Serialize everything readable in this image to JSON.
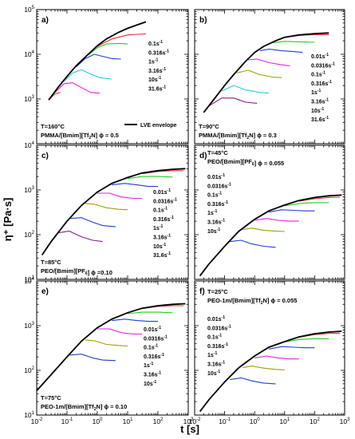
{
  "figure": {
    "ylabel": "η⁺ [Pa·s]",
    "xlabel": "t [s]"
  },
  "colors": {
    "lve": "#000000",
    "rates": [
      "#e53030",
      "#1ecf1e",
      "#1f3fd6",
      "#e81fe0",
      "#1ccfe0",
      "#a0a000",
      "#8b1a8b"
    ]
  },
  "chart_data": [
    {
      "type": "line",
      "panel": "a)",
      "x_scale": "log",
      "y_scale": "log",
      "xlim": [
        0.01,
        1000
      ],
      "ylim": [
        100,
        100000
      ],
      "y_ticks": [
        "10^3",
        "10^4",
        "10^5"
      ],
      "x_ticks": [],
      "condition_lines": [
        "T=160°C",
        "PMMA/[Bmim][Tf2N] ϕ = 0.5"
      ],
      "legend": [
        "0.1s-1",
        "0.316s-1",
        "1s-1",
        "3.16s-1",
        "10s-1",
        "31.6s-1"
      ],
      "lve_label": "LVE envelope",
      "lve": {
        "x": [
          0.025,
          0.05,
          0.1,
          0.2,
          0.5,
          1,
          2,
          5,
          10,
          20,
          40
        ],
        "y": [
          950,
          1800,
          3200,
          5500,
          10000,
          15500,
          22000,
          31000,
          38000,
          45000,
          53000
        ]
      },
      "series": [
        {
          "name": "0.1s-1",
          "color_index": 0,
          "x": [
            1,
            3,
            10,
            20,
            40
          ],
          "y": [
            15000,
            22000,
            27000,
            28000,
            28500
          ]
        },
        {
          "name": "0.316s-1",
          "color_index": 1,
          "x": [
            0.5,
            1,
            2,
            5,
            10
          ],
          "y": [
            9500,
            14000,
            17000,
            17500,
            17000
          ]
        },
        {
          "name": "1s-1",
          "color_index": 2,
          "x": [
            0.2,
            0.4,
            0.8,
            1.5,
            3,
            6
          ],
          "y": [
            5200,
            8000,
            10000,
            9000,
            8000,
            7800
          ]
        },
        {
          "name": "3.16s-1",
          "color_index": 4,
          "x": [
            0.08,
            0.15,
            0.3,
            0.6,
            1.2,
            3
          ],
          "y": [
            2500,
            3800,
            4500,
            3600,
            3000,
            2800
          ]
        },
        {
          "name": "10s-1",
          "color_index": 3,
          "x": [
            0.04,
            0.08,
            0.15,
            0.3,
            0.6,
            1.2
          ],
          "y": [
            1400,
            2200,
            2300,
            1800,
            1400,
            1350
          ]
        },
        {
          "name": "31.6s-1",
          "color_index": 0,
          "x": [
            0.025,
            0.04,
            0.06
          ],
          "y": [
            950,
            1300,
            1400
          ]
        }
      ]
    },
    {
      "type": "line",
      "panel": "b)",
      "x_scale": "log",
      "y_scale": "log",
      "xlim": [
        0.01,
        1000
      ],
      "ylim": [
        100,
        100000
      ],
      "y_ticks": [],
      "x_ticks": [],
      "condition_lines": [
        "T=90°C",
        "PMMA/[Bmim][Tf2N] ϕ = 0.3"
      ],
      "legend": [
        "0.01s-1",
        "0.0316s-1",
        "0.1s-1",
        "0.316s-1",
        "1s-1",
        "3.16s-1",
        "10s-1",
        "31.6s-1"
      ],
      "lve": {
        "x": [
          0.02,
          0.05,
          0.1,
          0.2,
          0.5,
          1,
          2,
          5,
          10,
          30,
          100,
          300
        ],
        "y": [
          500,
          1100,
          2000,
          3500,
          7000,
          11000,
          15000,
          20000,
          24000,
          27000,
          29000,
          30000
        ]
      },
      "series": [
        {
          "name": "0.01s-1",
          "color_index": 0,
          "x": [
            10,
            30,
            100,
            300
          ],
          "y": [
            24000,
            26500,
            27500,
            27500
          ]
        },
        {
          "name": "0.0316s-1",
          "color_index": 1,
          "x": [
            4,
            10,
            30,
            100
          ],
          "y": [
            18000,
            19500,
            19000,
            18500
          ]
        },
        {
          "name": "0.1s-1",
          "color_index": 2,
          "x": [
            1.5,
            3,
            8,
            20,
            40
          ],
          "y": [
            12000,
            13000,
            12000,
            11500,
            11000
          ]
        },
        {
          "name": "0.316s-1",
          "color_index": 3,
          "x": [
            0.6,
            1.2,
            3,
            8,
            15
          ],
          "y": [
            7500,
            7800,
            6500,
            5800,
            5500
          ]
        },
        {
          "name": "1s-1",
          "color_index": 5,
          "x": [
            0.25,
            0.6,
            1.5,
            4,
            8
          ],
          "y": [
            3800,
            4400,
            3500,
            3100,
            3000
          ]
        },
        {
          "name": "3.16s-1",
          "color_index": 4,
          "x": [
            0.08,
            0.2,
            0.5,
            1.5,
            3
          ],
          "y": [
            1500,
            2000,
            1600,
            1400,
            1350
          ]
        },
        {
          "name": "10s-1",
          "color_index": 6,
          "x": [
            0.03,
            0.08,
            0.2,
            0.5,
            1.2
          ],
          "y": [
            700,
            1050,
            1050,
            850,
            800
          ]
        }
      ]
    },
    {
      "type": "line",
      "panel": "c)",
      "x_scale": "log",
      "y_scale": "log",
      "xlim": [
        0.01,
        1000
      ],
      "ylim": [
        10,
        10000
      ],
      "y_ticks": [
        "10^1",
        "10^2",
        "10^3",
        "10^4"
      ],
      "x_ticks": [],
      "condition_lines": [
        "T=85°C",
        "PEO/[Bmim][PF6] ϕ =0.10"
      ],
      "legend": [
        "0.01s-1",
        "0.0316s-1",
        "0.1s-1",
        "0.316s-1",
        "1s-1",
        "3.16s-1",
        "10s-1",
        "31.6s-1"
      ],
      "lve": {
        "x": [
          0.015,
          0.03,
          0.1,
          0.3,
          1,
          3,
          10,
          30,
          100,
          300,
          800
        ],
        "y": [
          35,
          70,
          200,
          450,
          900,
          1400,
          1900,
          2400,
          2700,
          2900,
          3000
        ]
      },
      "series": [
        {
          "name": "0.01s-1",
          "color_index": 0,
          "x": [
            30,
            100,
            300,
            700
          ],
          "y": [
            2300,
            2600,
            2700,
            2700
          ]
        },
        {
          "name": "0.0316s-1",
          "color_index": 1,
          "x": [
            10,
            30,
            100,
            300
          ],
          "y": [
            1800,
            2000,
            2000,
            1950
          ]
        },
        {
          "name": "0.1s-1",
          "color_index": 2,
          "x": [
            3,
            8,
            20,
            50,
            100
          ],
          "y": [
            1300,
            1400,
            1300,
            1200,
            1200
          ]
        },
        {
          "name": "0.316s-1",
          "color_index": 3,
          "x": [
            1,
            2.5,
            6,
            15,
            30
          ],
          "y": [
            850,
            850,
            700,
            650,
            650
          ]
        },
        {
          "name": "1s-1",
          "color_index": 5,
          "x": [
            0.4,
            0.8,
            2,
            5,
            10
          ],
          "y": [
            500,
            480,
            400,
            370,
            360
          ]
        },
        {
          "name": "3.16s-1",
          "color_index": 2,
          "x": [
            0.12,
            0.3,
            0.7,
            1.5,
            4
          ],
          "y": [
            230,
            240,
            190,
            160,
            150
          ]
        },
        {
          "name": "10s-1",
          "color_index": 6,
          "x": [
            0.05,
            0.12,
            0.3,
            0.7,
            1.5
          ],
          "y": [
            110,
            120,
            90,
            75,
            70
          ]
        }
      ]
    },
    {
      "type": "line",
      "panel": "d)",
      "x_scale": "log",
      "y_scale": "log",
      "xlim": [
        0.01,
        1000
      ],
      "ylim": [
        10,
        10000
      ],
      "y_ticks": [],
      "x_ticks": [],
      "condition_lines": [
        "T=45°C",
        "PEO/[Bmim][PF6] ϕ = 0.055"
      ],
      "legend": [
        "0.01s-1",
        "0.0316s-1",
        "0.1s-1",
        "0.316s-1",
        "1s-1",
        "3.16s-1",
        "10s-1"
      ],
      "lve": {
        "x": [
          0.015,
          0.03,
          0.1,
          0.3,
          1,
          3,
          10,
          30,
          100,
          300,
          800
        ],
        "y": [
          12,
          22,
          55,
          120,
          220,
          340,
          460,
          580,
          680,
          740,
          770
        ]
      },
      "series": [
        {
          "name": "0.01s-1",
          "color_index": 0,
          "x": [
            30,
            100,
            300,
            700
          ],
          "y": [
            560,
            640,
            680,
            690
          ]
        },
        {
          "name": "0.0316s-1",
          "color_index": 1,
          "x": [
            10,
            30,
            100,
            300
          ],
          "y": [
            440,
            500,
            520,
            520
          ]
        },
        {
          "name": "0.1s-1",
          "color_index": 2,
          "x": [
            3,
            8,
            20,
            50,
            100
          ],
          "y": [
            320,
            360,
            350,
            340,
            340
          ]
        },
        {
          "name": "0.316s-1",
          "color_index": 3,
          "x": [
            1,
            2.5,
            6,
            15,
            30
          ],
          "y": [
            210,
            230,
            210,
            200,
            200
          ]
        },
        {
          "name": "1s-1",
          "color_index": 5,
          "x": [
            0.4,
            0.8,
            2,
            5,
            10
          ],
          "y": [
            130,
            140,
            125,
            120,
            118
          ]
        },
        {
          "name": "3.16s-1",
          "color_index": 2,
          "x": [
            0.15,
            0.35,
            0.8,
            2,
            5
          ],
          "y": [
            70,
            75,
            62,
            55,
            52
          ]
        }
      ]
    },
    {
      "type": "line",
      "panel": "e)",
      "x_scale": "log",
      "y_scale": "log",
      "xlim": [
        0.01,
        1000
      ],
      "ylim": [
        10,
        10000
      ],
      "y_ticks": [
        "10^1",
        "10^2",
        "10^3",
        "10^4"
      ],
      "x_ticks": [
        "10^-2",
        "10^-1",
        "10^0",
        "10^1",
        "10^2",
        "10^3"
      ],
      "condition_lines": [
        "T=75°C",
        "PEO-1m/[Bmim][Tf2N] ϕ = 0.10"
      ],
      "legend": [
        "0.01s-1",
        "0.0316s-1",
        "0.1s-1",
        "0.316s-1",
        "1s-1",
        "3.16s-1",
        "10s-1"
      ],
      "lve": {
        "x": [
          0.01,
          0.03,
          0.1,
          0.3,
          1,
          3,
          10,
          30,
          100,
          300,
          800
        ],
        "y": [
          35,
          80,
          200,
          450,
          900,
          1400,
          1950,
          2450,
          2800,
          3000,
          3100
        ]
      },
      "series": [
        {
          "name": "0.01s-1",
          "color_index": 0,
          "x": [
            30,
            100,
            300,
            700
          ],
          "y": [
            2400,
            2700,
            2800,
            2800
          ]
        },
        {
          "name": "0.0316s-1",
          "color_index": 1,
          "x": [
            10,
            30,
            100,
            300
          ],
          "y": [
            1850,
            2000,
            2000,
            1950
          ]
        },
        {
          "name": "0.1s-1",
          "color_index": 2,
          "x": [
            3,
            8,
            20,
            50,
            100
          ],
          "y": [
            1300,
            1400,
            1300,
            1250,
            1250
          ]
        },
        {
          "name": "0.316s-1",
          "color_index": 3,
          "x": [
            1,
            2.5,
            6,
            15,
            30
          ],
          "y": [
            850,
            850,
            700,
            650,
            650
          ]
        },
        {
          "name": "1s-1",
          "color_index": 5,
          "x": [
            0.4,
            0.8,
            2,
            5,
            10
          ],
          "y": [
            480,
            460,
            380,
            360,
            350
          ]
        },
        {
          "name": "3.16s-1",
          "color_index": 2,
          "x": [
            0.12,
            0.3,
            0.7,
            1.5,
            4
          ],
          "y": [
            220,
            230,
            190,
            170,
            165
          ]
        }
      ]
    },
    {
      "type": "line",
      "panel": "f)",
      "x_scale": "log",
      "y_scale": "log",
      "xlim": [
        0.01,
        1000
      ],
      "ylim": [
        10,
        10000
      ],
      "y_ticks": [],
      "x_ticks": [
        "10^-2",
        "10^-1",
        "10^0",
        "10^1",
        "10^2",
        "10^3"
      ],
      "condition_lines": [
        "T=25°C",
        "PEO-1m/[Bmim][Tf2N] ϕ = 0.055"
      ],
      "legend": [
        "0.01s-1",
        "0.0316s-1",
        "0.1s-1",
        "0.316s-1",
        "1s-1",
        "3.16s-1",
        "10s-1"
      ],
      "lve": {
        "x": [
          0.015,
          0.03,
          0.1,
          0.3,
          1,
          3,
          10,
          30,
          100,
          300,
          800
        ],
        "y": [
          12,
          22,
          55,
          115,
          210,
          330,
          440,
          560,
          660,
          720,
          750
        ]
      },
      "series": [
        {
          "name": "0.01s-1",
          "color_index": 0,
          "x": [
            30,
            100,
            300,
            700
          ],
          "y": [
            550,
            630,
            670,
            680
          ]
        },
        {
          "name": "0.0316s-1",
          "color_index": 1,
          "x": [
            10,
            30,
            100,
            300
          ],
          "y": [
            430,
            490,
            510,
            510
          ]
        },
        {
          "name": "0.1s-1",
          "color_index": 2,
          "x": [
            3,
            8,
            20,
            50,
            100
          ],
          "y": [
            300,
            340,
            330,
            320,
            320
          ]
        },
        {
          "name": "0.316s-1",
          "color_index": 3,
          "x": [
            1,
            2.5,
            6,
            15,
            30
          ],
          "y": [
            190,
            210,
            190,
            180,
            180
          ]
        },
        {
          "name": "1s-1",
          "color_index": 5,
          "x": [
            0.4,
            0.8,
            2,
            5,
            10
          ],
          "y": [
            115,
            125,
            112,
            105,
            103
          ]
        },
        {
          "name": "3.16s-1",
          "color_index": 2,
          "x": [
            0.15,
            0.35,
            0.8,
            2,
            5
          ],
          "y": [
            62,
            68,
            58,
            52,
            50
          ]
        }
      ]
    }
  ]
}
